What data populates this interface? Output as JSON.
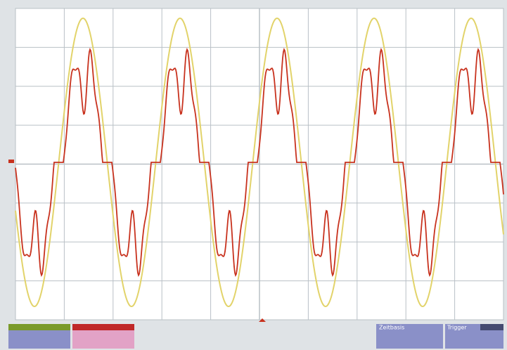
{
  "status": {
    "timebase": "Zeitbasis",
    "trigger": "Trigger"
  }
}
